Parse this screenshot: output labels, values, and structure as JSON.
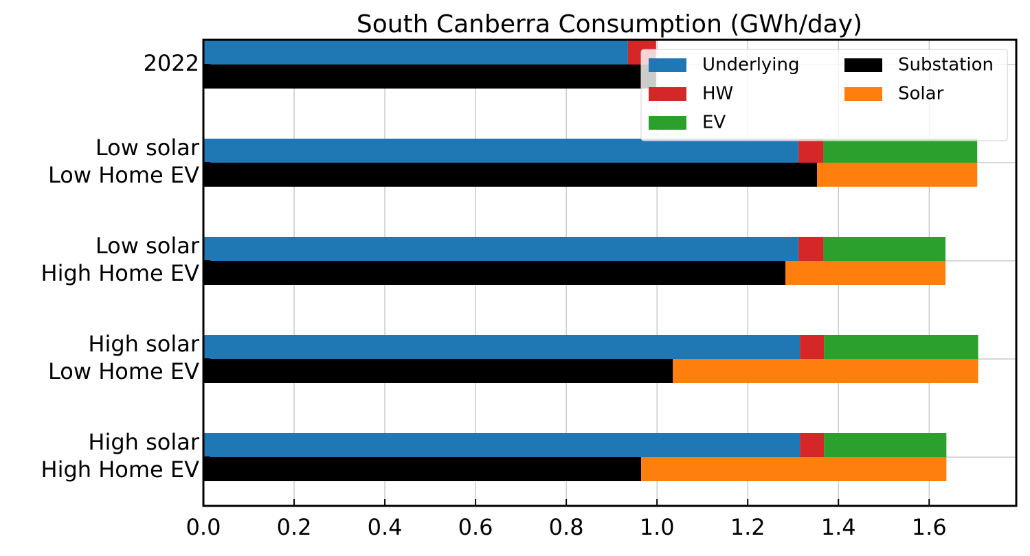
{
  "chart_data": {
    "type": "bar",
    "orientation": "horizontal",
    "title": "South Canberra Consumption (GWh/day)",
    "categories": [
      [
        "2022"
      ],
      [
        "Low solar",
        "Low Home EV"
      ],
      [
        "Low solar",
        "High Home EV"
      ],
      [
        "High solar",
        "Low Home EV"
      ],
      [
        "High solar",
        "High Home EV"
      ]
    ],
    "series": [
      {
        "name": "Underlying",
        "color": "#1f77b4",
        "values": [
          0.936,
          1.312,
          1.312,
          1.315,
          1.315
        ]
      },
      {
        "name": "HW",
        "color": "#d62728",
        "values": [
          0.062,
          0.055,
          0.055,
          0.053,
          0.053
        ]
      },
      {
        "name": "EV",
        "color": "#2ca02c",
        "values": [
          0,
          0.339,
          0.269,
          0.34,
          0.27
        ]
      },
      {
        "name": "Substation",
        "color": "#000000",
        "values": [
          0.998,
          1.353,
          1.283,
          1.035,
          0.965
        ]
      },
      {
        "name": "Solar",
        "color": "#ff7f0e",
        "values": [
          0,
          0.353,
          0.353,
          0.673,
          0.673
        ]
      }
    ],
    "xlim": [
      0,
      1.792
    ],
    "xticks": [
      {
        "value": 0,
        "label": "0.0"
      },
      0.2,
      0.4,
      0.6,
      0.8,
      {
        "value": 1,
        "label": "1.0"
      },
      1.2,
      1.4,
      1.6
    ],
    "grid": true,
    "legend": "upper right"
  }
}
